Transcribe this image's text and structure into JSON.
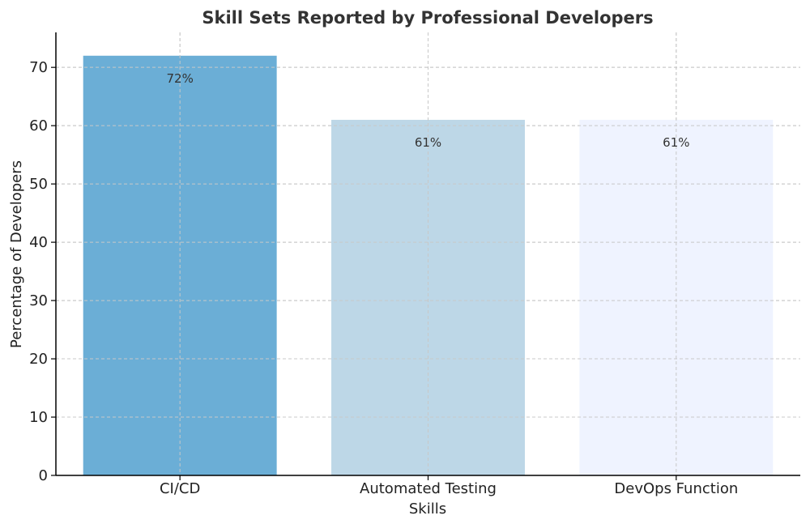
{
  "chart_data": {
    "type": "bar",
    "title": "Skill Sets Reported by Professional Developers",
    "xlabel": "Skills",
    "ylabel": "Percentage of Developers",
    "categories": [
      "CI/CD",
      "Automated Testing",
      "DevOps Function"
    ],
    "values": [
      72,
      61,
      61
    ],
    "data_labels": [
      "72%",
      "61%",
      "61%"
    ],
    "colors": [
      "#6baed6",
      "#bdd7e7",
      "#eff3ff"
    ],
    "ylim": [
      0,
      76
    ],
    "yticks": [
      0,
      10,
      20,
      30,
      40,
      50,
      60,
      70
    ],
    "grid": true,
    "legend": "none"
  }
}
